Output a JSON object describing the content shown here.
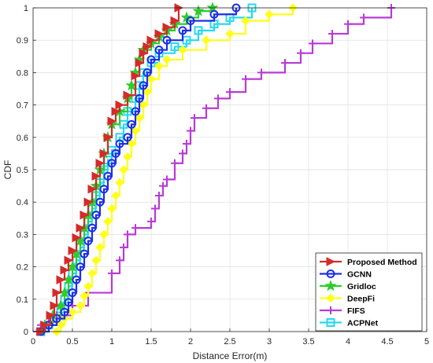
{
  "chart_data": {
    "type": "line",
    "title": "",
    "xlabel": "Distance Error(m)",
    "ylabel": "CDF",
    "xlim": [
      0,
      5
    ],
    "ylim": [
      0,
      1
    ],
    "xticks": [
      "0",
      "0.5",
      "1",
      "1.5",
      "2",
      "2.5",
      "3",
      "3.5",
      "4",
      "4.5",
      "5"
    ],
    "yticks": [
      "0",
      "0.1",
      "0.2",
      "0.3",
      "0.4",
      "0.5",
      "0.6",
      "0.7",
      "0.8",
      "0.9",
      "1"
    ],
    "grid": true,
    "legend_position": "bottom-right",
    "series": [
      {
        "name": "Proposed Method",
        "color": "#d62a2a",
        "marker": "triangle-right",
        "points": [
          [
            0.1,
            0
          ],
          [
            0.15,
            0.02
          ],
          [
            0.22,
            0.05
          ],
          [
            0.27,
            0.08
          ],
          [
            0.3,
            0.12
          ],
          [
            0.35,
            0.16
          ],
          [
            0.4,
            0.19
          ],
          [
            0.45,
            0.22
          ],
          [
            0.5,
            0.25
          ],
          [
            0.55,
            0.29
          ],
          [
            0.6,
            0.32
          ],
          [
            0.65,
            0.36
          ],
          [
            0.7,
            0.4
          ],
          [
            0.75,
            0.44
          ],
          [
            0.8,
            0.48
          ],
          [
            0.85,
            0.52
          ],
          [
            0.9,
            0.55
          ],
          [
            0.95,
            0.6
          ],
          [
            1.0,
            0.65
          ],
          [
            1.05,
            0.68
          ],
          [
            1.1,
            0.7
          ],
          [
            1.2,
            0.73
          ],
          [
            1.3,
            0.79
          ],
          [
            1.35,
            0.83
          ],
          [
            1.4,
            0.86
          ],
          [
            1.45,
            0.88
          ],
          [
            1.5,
            0.9
          ],
          [
            1.6,
            0.92
          ],
          [
            1.7,
            0.94
          ],
          [
            1.8,
            0.96
          ],
          [
            1.85,
            1.0
          ]
        ]
      },
      {
        "name": "GCNN",
        "color": "#1f2ee6",
        "marker": "circle",
        "points": [
          [
            0.1,
            0
          ],
          [
            0.2,
            0.02
          ],
          [
            0.3,
            0.04
          ],
          [
            0.4,
            0.06
          ],
          [
            0.45,
            0.09
          ],
          [
            0.5,
            0.12
          ],
          [
            0.55,
            0.16
          ],
          [
            0.6,
            0.2
          ],
          [
            0.65,
            0.24
          ],
          [
            0.7,
            0.28
          ],
          [
            0.75,
            0.32
          ],
          [
            0.8,
            0.36
          ],
          [
            0.85,
            0.4
          ],
          [
            0.9,
            0.44
          ],
          [
            0.95,
            0.48
          ],
          [
            1.0,
            0.52
          ],
          [
            1.05,
            0.55
          ],
          [
            1.1,
            0.58
          ],
          [
            1.2,
            0.6
          ],
          [
            1.25,
            0.64
          ],
          [
            1.3,
            0.68
          ],
          [
            1.35,
            0.72
          ],
          [
            1.4,
            0.76
          ],
          [
            1.45,
            0.8
          ],
          [
            1.5,
            0.84
          ],
          [
            1.6,
            0.87
          ],
          [
            1.7,
            0.9
          ],
          [
            1.9,
            0.93
          ],
          [
            2.0,
            0.96
          ],
          [
            2.3,
            0.98
          ],
          [
            2.58,
            1.0
          ]
        ]
      },
      {
        "name": "Gridloc",
        "color": "#2ecc2e",
        "marker": "star",
        "points": [
          [
            0.1,
            0
          ],
          [
            0.15,
            0.02
          ],
          [
            0.25,
            0.05
          ],
          [
            0.35,
            0.08
          ],
          [
            0.4,
            0.12
          ],
          [
            0.45,
            0.16
          ],
          [
            0.5,
            0.2
          ],
          [
            0.55,
            0.24
          ],
          [
            0.6,
            0.28
          ],
          [
            0.65,
            0.32
          ],
          [
            0.7,
            0.36
          ],
          [
            0.75,
            0.4
          ],
          [
            0.8,
            0.45
          ],
          [
            0.85,
            0.5
          ],
          [
            0.9,
            0.55
          ],
          [
            0.95,
            0.6
          ],
          [
            1.0,
            0.64
          ],
          [
            1.1,
            0.68
          ],
          [
            1.2,
            0.72
          ],
          [
            1.25,
            0.76
          ],
          [
            1.3,
            0.8
          ],
          [
            1.35,
            0.84
          ],
          [
            1.4,
            0.87
          ],
          [
            1.5,
            0.89
          ],
          [
            1.6,
            0.91
          ],
          [
            1.7,
            0.93
          ],
          [
            1.8,
            0.95
          ],
          [
            1.95,
            0.97
          ],
          [
            2.1,
            0.99
          ],
          [
            2.28,
            1.0
          ]
        ]
      },
      {
        "name": "DeepFi",
        "color": "#ffff1a",
        "marker": "diamond",
        "points": [
          [
            0.3,
            0
          ],
          [
            0.35,
            0.02
          ],
          [
            0.4,
            0.04
          ],
          [
            0.5,
            0.06
          ],
          [
            0.6,
            0.08
          ],
          [
            0.65,
            0.11
          ],
          [
            0.7,
            0.14
          ],
          [
            0.75,
            0.18
          ],
          [
            0.8,
            0.22
          ],
          [
            0.85,
            0.26
          ],
          [
            0.9,
            0.3
          ],
          [
            0.95,
            0.34
          ],
          [
            1.0,
            0.38
          ],
          [
            1.05,
            0.42
          ],
          [
            1.1,
            0.46
          ],
          [
            1.15,
            0.5
          ],
          [
            1.2,
            0.54
          ],
          [
            1.25,
            0.58
          ],
          [
            1.3,
            0.62
          ],
          [
            1.35,
            0.66
          ],
          [
            1.4,
            0.7
          ],
          [
            1.45,
            0.74
          ],
          [
            1.5,
            0.78
          ],
          [
            1.6,
            0.82
          ],
          [
            1.7,
            0.84
          ],
          [
            1.9,
            0.87
          ],
          [
            2.2,
            0.9
          ],
          [
            2.5,
            0.92
          ],
          [
            2.7,
            0.96
          ],
          [
            3.0,
            0.98
          ],
          [
            3.3,
            1.0
          ]
        ]
      },
      {
        "name": "FIFS",
        "color": "#b83ad6",
        "marker": "plus",
        "points": [
          [
            0.05,
            0
          ],
          [
            0.1,
            0.02
          ],
          [
            0.2,
            0.03
          ],
          [
            0.3,
            0.05
          ],
          [
            0.5,
            0.08
          ],
          [
            0.7,
            0.12
          ],
          [
            1.0,
            0.18
          ],
          [
            1.1,
            0.22
          ],
          [
            1.15,
            0.26
          ],
          [
            1.2,
            0.3
          ],
          [
            1.3,
            0.32
          ],
          [
            1.5,
            0.34
          ],
          [
            1.55,
            0.38
          ],
          [
            1.6,
            0.42
          ],
          [
            1.65,
            0.45
          ],
          [
            1.7,
            0.47
          ],
          [
            1.8,
            0.52
          ],
          [
            1.9,
            0.55
          ],
          [
            1.95,
            0.58
          ],
          [
            2.0,
            0.62
          ],
          [
            2.05,
            0.66
          ],
          [
            2.2,
            0.69
          ],
          [
            2.35,
            0.72
          ],
          [
            2.5,
            0.74
          ],
          [
            2.7,
            0.78
          ],
          [
            2.9,
            0.8
          ],
          [
            3.2,
            0.83
          ],
          [
            3.4,
            0.86
          ],
          [
            3.55,
            0.89
          ],
          [
            3.8,
            0.92
          ],
          [
            4.0,
            0.95
          ],
          [
            4.2,
            0.97
          ],
          [
            4.55,
            1.0
          ]
        ]
      },
      {
        "name": "ACPNet",
        "color": "#27d8ee",
        "marker": "square",
        "points": [
          [
            0.1,
            0
          ],
          [
            0.2,
            0.02
          ],
          [
            0.3,
            0.04
          ],
          [
            0.35,
            0.07
          ],
          [
            0.4,
            0.1
          ],
          [
            0.45,
            0.14
          ],
          [
            0.5,
            0.18
          ],
          [
            0.55,
            0.22
          ],
          [
            0.6,
            0.26
          ],
          [
            0.65,
            0.3
          ],
          [
            0.7,
            0.34
          ],
          [
            0.75,
            0.38
          ],
          [
            0.8,
            0.42
          ],
          [
            0.85,
            0.46
          ],
          [
            0.9,
            0.5
          ],
          [
            0.95,
            0.53
          ],
          [
            1.0,
            0.56
          ],
          [
            1.1,
            0.6
          ],
          [
            1.15,
            0.64
          ],
          [
            1.2,
            0.68
          ],
          [
            1.3,
            0.72
          ],
          [
            1.35,
            0.76
          ],
          [
            1.4,
            0.8
          ],
          [
            1.5,
            0.83
          ],
          [
            1.6,
            0.86
          ],
          [
            1.8,
            0.88
          ],
          [
            1.95,
            0.9
          ],
          [
            2.1,
            0.93
          ],
          [
            2.3,
            0.95
          ],
          [
            2.5,
            0.97
          ],
          [
            2.78,
            1.0
          ]
        ]
      }
    ]
  }
}
